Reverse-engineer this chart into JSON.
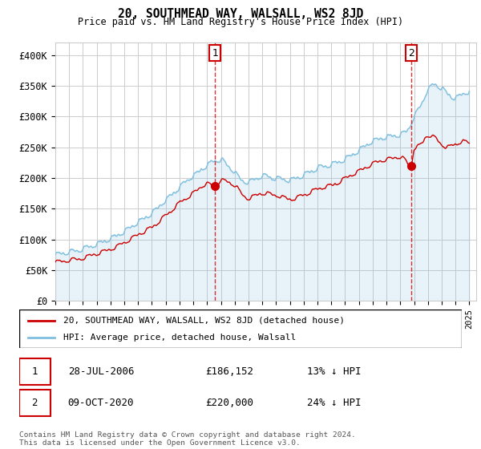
{
  "title": "20, SOUTHMEAD WAY, WALSALL, WS2 8JD",
  "subtitle": "Price paid vs. HM Land Registry's House Price Index (HPI)",
  "hpi_color": "#7fbfdf",
  "price_color": "#cc0000",
  "annotation_box_color": "#cc0000",
  "background_color": "#ffffff",
  "grid_color": "#cccccc",
  "legend_label_price": "20, SOUTHMEAD WAY, WALSALL, WS2 8JD (detached house)",
  "legend_label_hpi": "HPI: Average price, detached house, Walsall",
  "transaction1_date": "28-JUL-2006",
  "transaction1_price": "£186,152",
  "transaction1_note": "13% ↓ HPI",
  "transaction2_date": "09-OCT-2020",
  "transaction2_price": "£220,000",
  "transaction2_note": "24% ↓ HPI",
  "footer": "Contains HM Land Registry data © Crown copyright and database right 2024.\nThis data is licensed under the Open Government Licence v3.0.",
  "ylim": [
    0,
    420000
  ],
  "yticks": [
    0,
    50000,
    100000,
    150000,
    200000,
    250000,
    300000,
    350000,
    400000
  ],
  "ytick_labels": [
    "£0",
    "£50K",
    "£100K",
    "£150K",
    "£200K",
    "£250K",
    "£300K",
    "£350K",
    "£400K"
  ],
  "xlim_start": 1995.0,
  "xlim_end": 2025.5,
  "transaction1_x": 2006.57,
  "transaction1_y": 186152,
  "transaction2_x": 2020.77,
  "transaction2_y": 220000
}
